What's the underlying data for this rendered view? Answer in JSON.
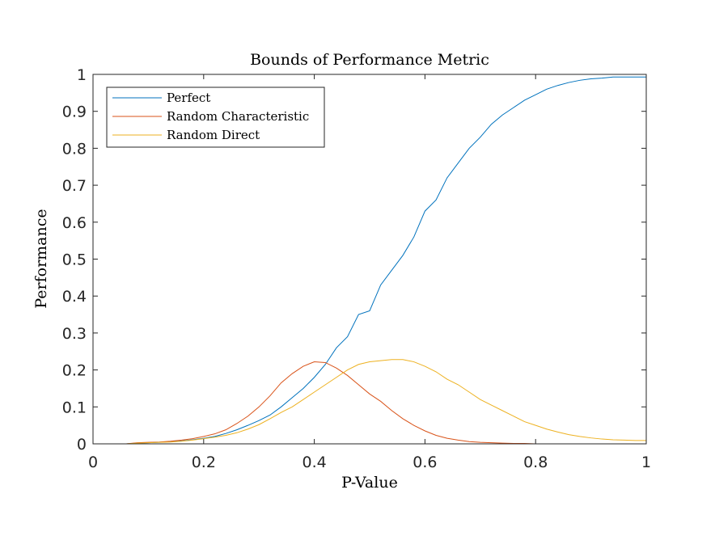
{
  "chart_data": {
    "type": "line",
    "title": "Bounds of Performance Metric",
    "xlabel": "P-Value",
    "ylabel": "Performance",
    "xlim": [
      0,
      1
    ],
    "ylim": [
      0,
      1
    ],
    "xticks": [
      0,
      0.2,
      0.4,
      0.6,
      0.8,
      1
    ],
    "xtick_labels": [
      "0",
      "0.2",
      "0.4",
      "0.6",
      "0.8",
      "1"
    ],
    "yticks": [
      0,
      0.1,
      0.2,
      0.3,
      0.4,
      0.5,
      0.6,
      0.7,
      0.8,
      0.9,
      1
    ],
    "ytick_labels": [
      "0",
      "0.1",
      "0.2",
      "0.3",
      "0.4",
      "0.5",
      "0.6",
      "0.7",
      "0.8",
      "0.9",
      "1"
    ],
    "grid": false,
    "legend_position": "top-left",
    "x": [
      0,
      0.02,
      0.04,
      0.06,
      0.08,
      0.1,
      0.12,
      0.14,
      0.16,
      0.18,
      0.2,
      0.22,
      0.24,
      0.26,
      0.28,
      0.3,
      0.32,
      0.34,
      0.36,
      0.38,
      0.4,
      0.42,
      0.44,
      0.46,
      0.48,
      0.5,
      0.52,
      0.54,
      0.56,
      0.58,
      0.6,
      0.62,
      0.64,
      0.66,
      0.68,
      0.7,
      0.72,
      0.74,
      0.76,
      0.78,
      0.8,
      0.82,
      0.84,
      0.86,
      0.88,
      0.9,
      0.92,
      0.94,
      0.96,
      0.98,
      1.0
    ],
    "series": [
      {
        "name": "Perfect",
        "color": "#0072BD",
        "values": [
          0,
          0,
          0,
          0,
          0.002,
          0.003,
          0.004,
          0.006,
          0.008,
          0.011,
          0.015,
          0.02,
          0.028,
          0.038,
          0.05,
          0.063,
          0.078,
          0.1,
          0.125,
          0.15,
          0.18,
          0.215,
          0.26,
          0.29,
          0.35,
          0.36,
          0.43,
          0.47,
          0.51,
          0.56,
          0.63,
          0.66,
          0.72,
          0.76,
          0.8,
          0.83,
          0.865,
          0.89,
          0.91,
          0.93,
          0.945,
          0.96,
          0.97,
          0.978,
          0.984,
          0.988,
          0.99,
          0.993,
          0.993,
          0.993,
          0.993
        ]
      },
      {
        "name": "Random Characteristic",
        "color": "#D95319",
        "values": [
          0,
          0,
          0,
          0,
          0.003,
          0.004,
          0.005,
          0.007,
          0.01,
          0.014,
          0.02,
          0.027,
          0.038,
          0.055,
          0.075,
          0.1,
          0.13,
          0.165,
          0.19,
          0.21,
          0.222,
          0.22,
          0.205,
          0.185,
          0.16,
          0.135,
          0.115,
          0.09,
          0.068,
          0.05,
          0.035,
          0.023,
          0.015,
          0.01,
          0.006,
          0.004,
          0.003,
          0.002,
          0.001,
          0.001,
          0,
          0,
          0,
          0,
          0,
          0,
          0,
          0,
          0,
          0,
          0
        ]
      },
      {
        "name": "Random Direct",
        "color": "#EDB120",
        "values": [
          0,
          0,
          0,
          0,
          0.002,
          0.003,
          0.004,
          0.005,
          0.007,
          0.01,
          0.014,
          0.018,
          0.023,
          0.03,
          0.04,
          0.052,
          0.068,
          0.085,
          0.1,
          0.12,
          0.14,
          0.16,
          0.18,
          0.2,
          0.215,
          0.222,
          0.225,
          0.228,
          0.228,
          0.222,
          0.21,
          0.195,
          0.175,
          0.16,
          0.14,
          0.12,
          0.105,
          0.09,
          0.075,
          0.06,
          0.05,
          0.04,
          0.032,
          0.025,
          0.02,
          0.016,
          0.013,
          0.011,
          0.01,
          0.009,
          0.009
        ]
      }
    ]
  }
}
